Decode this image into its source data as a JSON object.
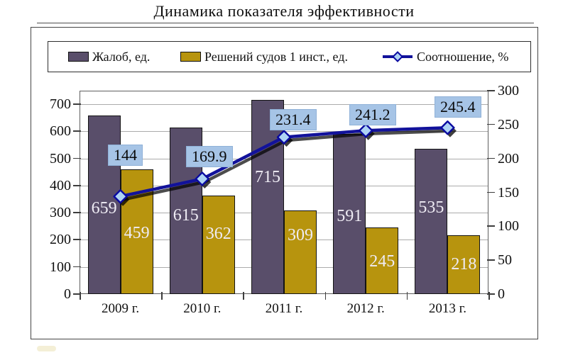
{
  "title": "Динамика показателя эффективности",
  "chart_data": {
    "type": "combo_bar_line",
    "categories": [
      "2009 г.",
      "2010 г.",
      "2011 г.",
      "2012 г.",
      "2013 г."
    ],
    "series": [
      {
        "name": "Жалоб, ед.",
        "type": "bar",
        "axis": "left",
        "color": "#594e6a",
        "values": [
          659,
          615,
          715,
          591,
          535
        ]
      },
      {
        "name": "Решений судов 1 инст., ед.",
        "type": "bar",
        "axis": "left",
        "color": "#b7940e",
        "values": [
          459,
          362,
          309,
          245,
          218
        ]
      },
      {
        "name": "Соотношение, %",
        "type": "line",
        "axis": "right",
        "color": "#12129b",
        "values": [
          144,
          169.9,
          231.4,
          241.2,
          245.4
        ],
        "point_labels": [
          "144",
          "169.9",
          "231.4",
          "241.2",
          "245.4"
        ]
      }
    ],
    "left_axis": {
      "ticks": [
        "0",
        "100",
        "200",
        "300",
        "400",
        "500",
        "600",
        "700"
      ],
      "tick_values": [
        0,
        100,
        200,
        300,
        400,
        500,
        600,
        700
      ],
      "range": [
        0,
        750
      ]
    },
    "right_axis": {
      "ticks": [
        "0",
        "50",
        "100",
        "150",
        "200",
        "250",
        "300"
      ],
      "tick_values": [
        0,
        50,
        100,
        150,
        200,
        250,
        300
      ],
      "range": [
        0,
        300
      ]
    },
    "legend_position": "top",
    "grid": "horizontal major (left axis)"
  },
  "colors": {
    "bar_complaints": "#594e6a",
    "bar_decisions": "#b7940e",
    "line_ratio": "#12129b",
    "marker_fill": "#aed3f4",
    "marker_stroke": "#0a0aa0",
    "callout_bg": "#a6c4e6",
    "bar_label_text": "#efecf4",
    "gridline": "#ababab"
  }
}
